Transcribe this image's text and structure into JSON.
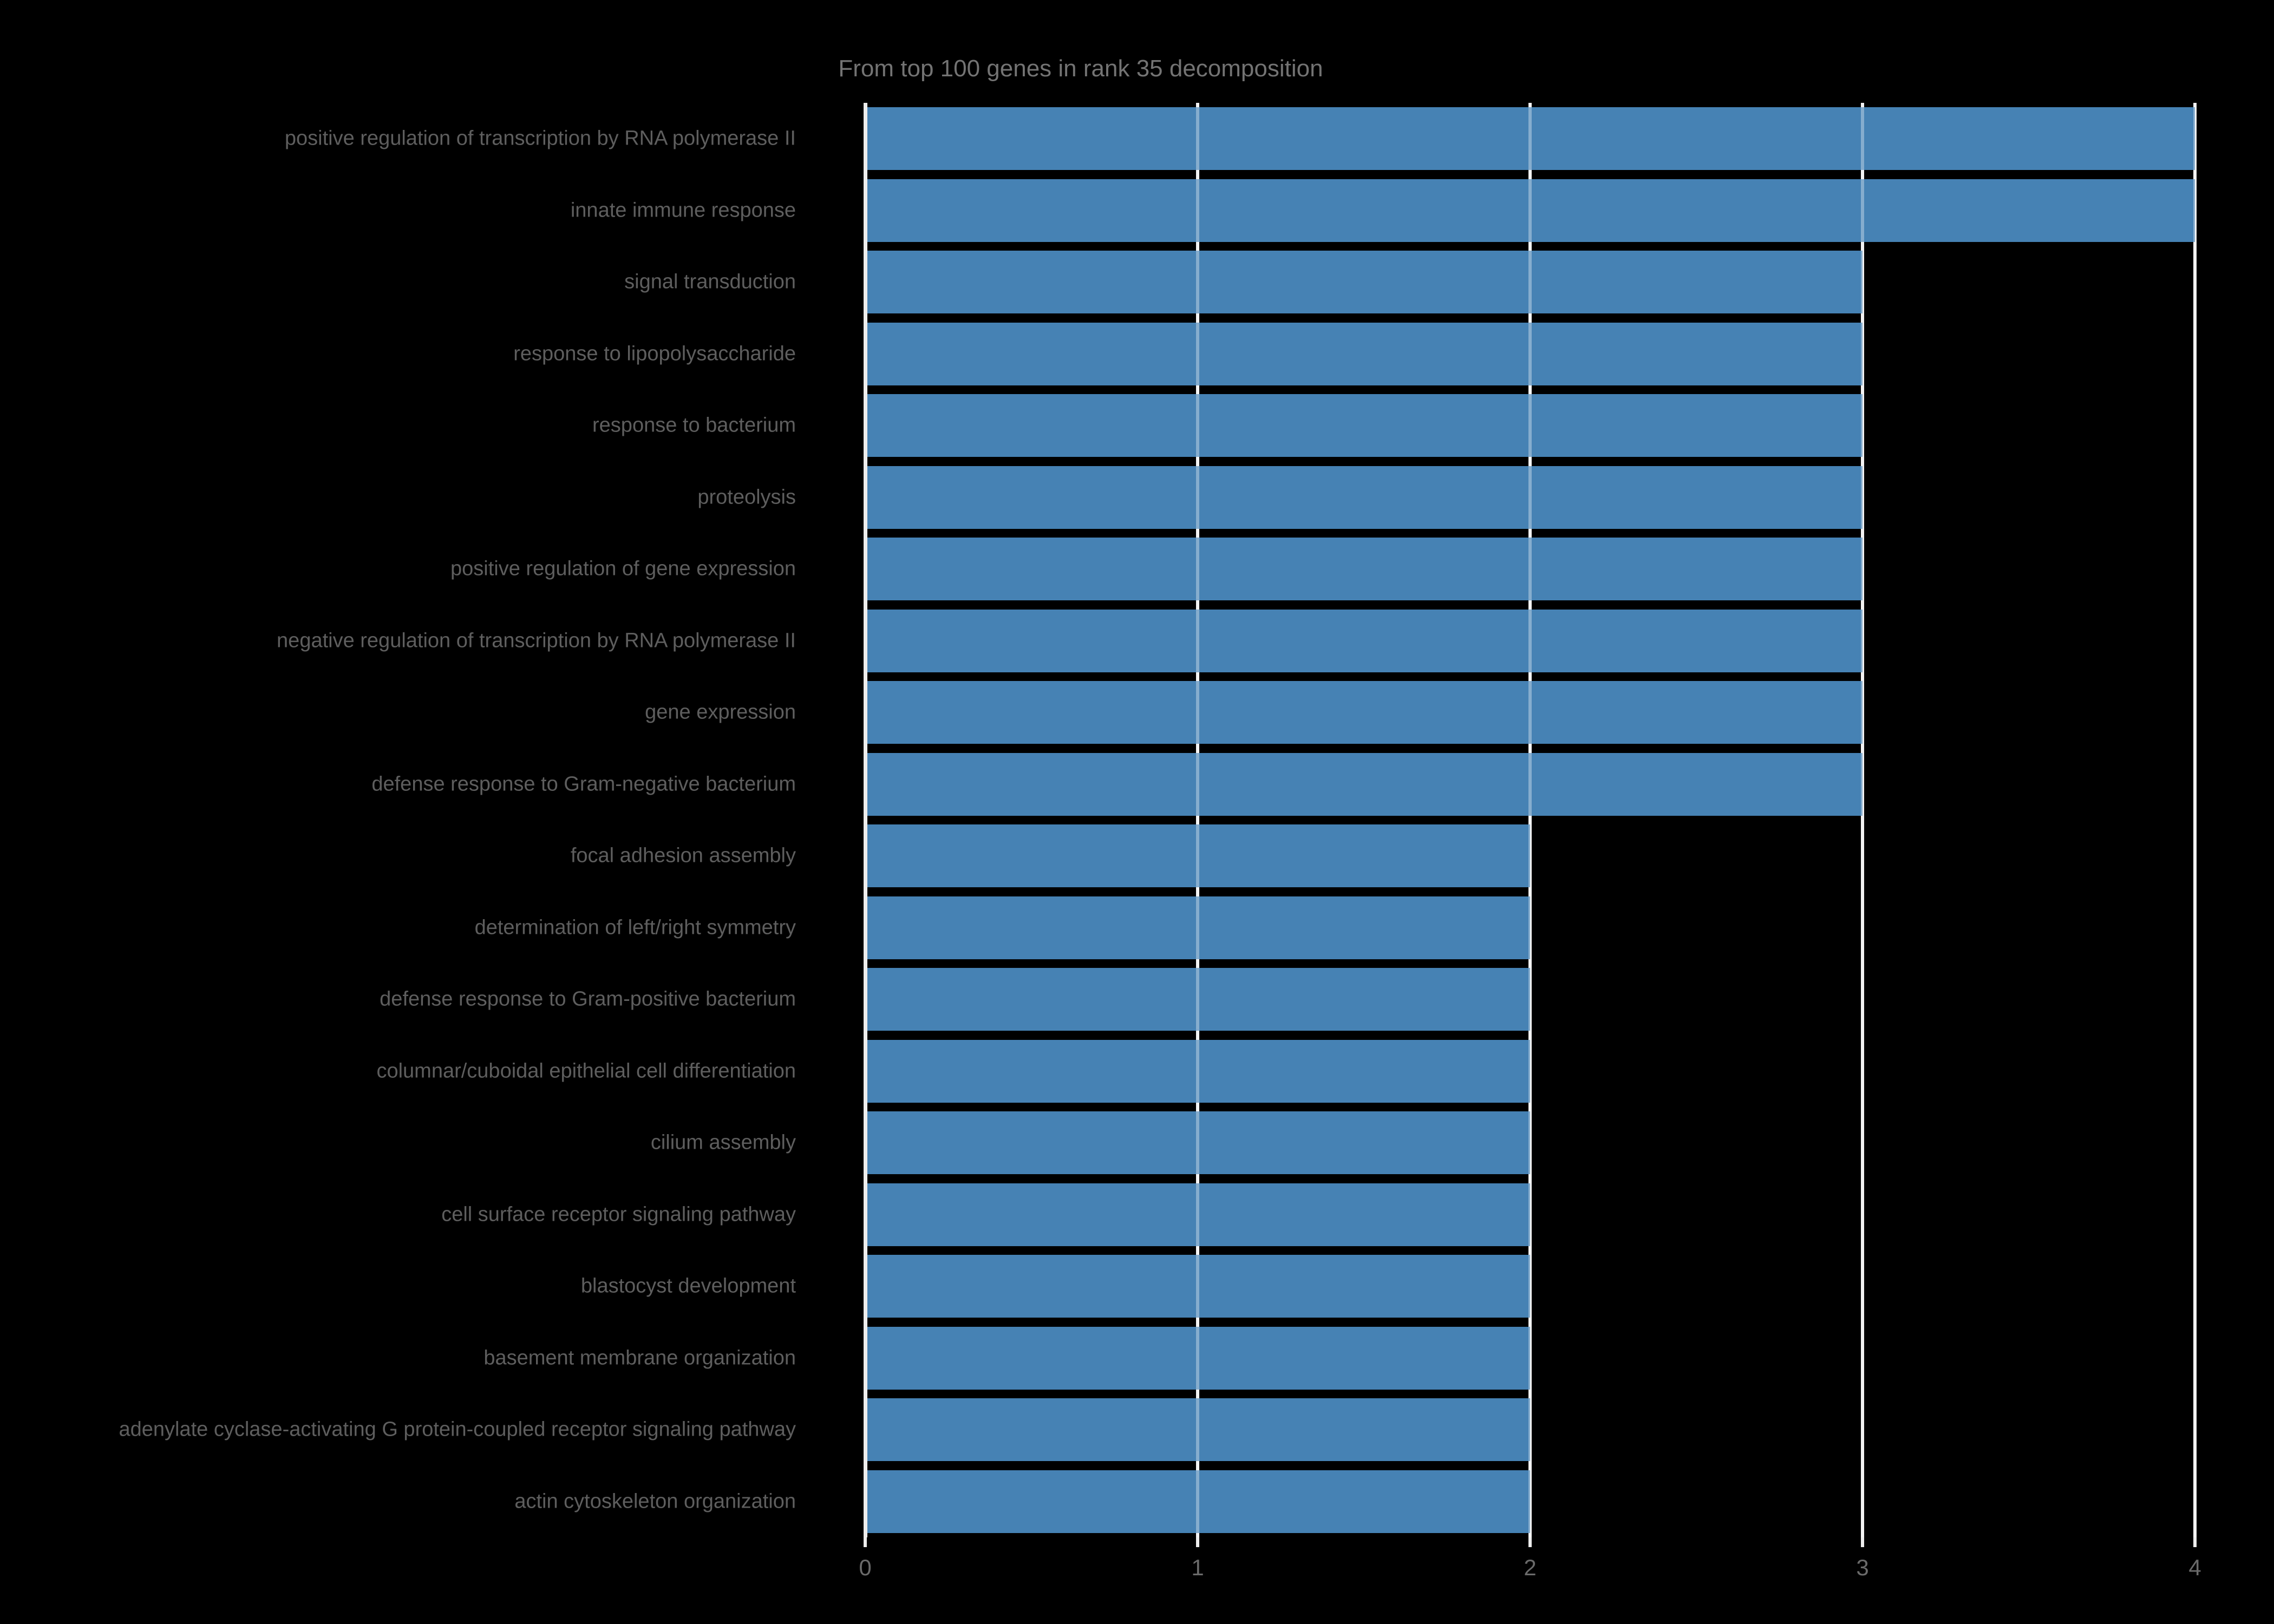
{
  "chart_data": {
    "type": "bar",
    "orientation": "horizontal",
    "title": "From top 100 genes in rank 35 decomposition",
    "categories": [
      "positive regulation of transcription by RNA polymerase II",
      "innate immune response",
      "signal transduction",
      "response to lipopolysaccharide",
      "response to bacterium",
      "proteolysis",
      "positive regulation of gene expression",
      "negative regulation of transcription by RNA polymerase II",
      "gene expression",
      "defense response to Gram-negative bacterium",
      "focal adhesion assembly",
      "determination of left/right symmetry",
      "defense response to Gram-positive bacterium",
      "columnar/cuboidal epithelial cell differentiation",
      "cilium assembly",
      "cell surface receptor signaling pathway",
      "blastocyst development",
      "basement membrane organization",
      "adenylate cyclase-activating G protein-coupled receptor signaling pathway",
      "actin cytoskeleton organization"
    ],
    "values": [
      4,
      4,
      3,
      3,
      3,
      3,
      3,
      3,
      3,
      3,
      2,
      2,
      2,
      2,
      2,
      2,
      2,
      2,
      2,
      2
    ],
    "xlabel": "",
    "ylabel": "",
    "xlim": [
      0,
      4
    ],
    "xticks": [
      "0",
      "1",
      "2",
      "3",
      "4"
    ],
    "grid": "vertical",
    "legend": "none",
    "colors": {
      "background": "#000000",
      "bar": "#4682b4",
      "gridline": "#ededed",
      "gridline_over_bar": "rgba(255,255,255,0.35)",
      "title_text": "#737373",
      "category_label_text": "#5e5e5e",
      "tick_label_text": "#6a6a6a"
    }
  }
}
